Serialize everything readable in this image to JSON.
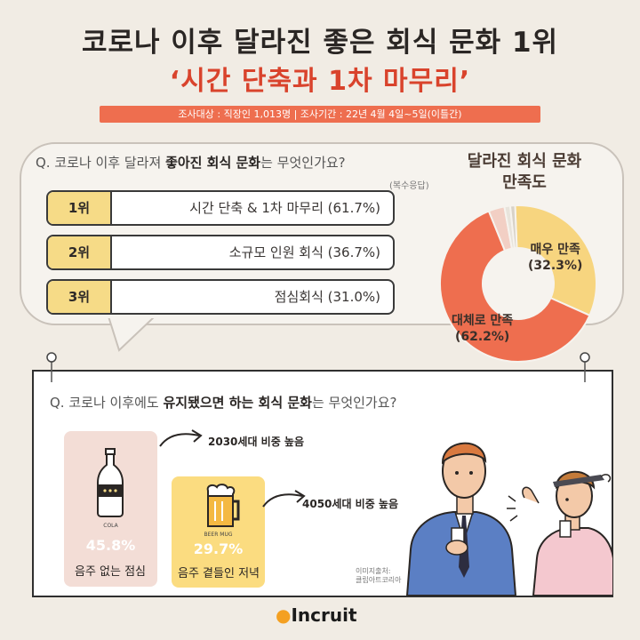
{
  "header": {
    "title": "코로나 이후 달라진 좋은 회식 문화 1위",
    "subtitle": "‘시간 단축과 1차 마무리’",
    "survey_info": "조사대상 : 직장인 1,013명  |  조사기간 : 22년 4월 4일~5일(이틀간)"
  },
  "question1": {
    "prefix": "Q. 코로나 이후 달라져 ",
    "bold": "좋아진 회식 문화",
    "suffix": "는 무엇인가요?",
    "note": "(복수응답)",
    "ranks": [
      {
        "rank": "1위",
        "text": "시간 단축 & 1차 마무리 (61.7%)"
      },
      {
        "rank": "2위",
        "text": "소규모 인원 회식 (36.7%)"
      },
      {
        "rank": "3위",
        "text": "점심회식 (31.0%)"
      }
    ]
  },
  "satisfaction": {
    "title_line1": "달라진 회식 문화",
    "title_line2": "만족도",
    "label_very": "매우 만족",
    "label_very_pct": "(32.3%)",
    "label_mostly": "대체로 만족",
    "label_mostly_pct": "(62.2%)"
  },
  "chart_data": {
    "type": "pie",
    "title": "달라진 회식 문화 만족도",
    "categories": [
      "매우 만족",
      "대체로 만족",
      "",
      "",
      ""
    ],
    "values": [
      32.3,
      62.2,
      3.3,
      1.2,
      1.0
    ],
    "colors": [
      "#f7d57f",
      "#ee6e4f",
      "#f2cfc4",
      "#e8e4dc",
      "#d8d2c8"
    ]
  },
  "question2": {
    "prefix": "Q. 코로나 이후에도 ",
    "bold": "유지됐으면 하는 회식 문화",
    "suffix": "는 무엇인가요?",
    "items": [
      {
        "icon_label": "COLA",
        "pct": "45.8%",
        "caption": "음주 없는 점심",
        "note": "2030세대 비중 높음"
      },
      {
        "icon_label": "BEER MUG",
        "pct": "29.7%",
        "caption": "음주 곁들인 저녁",
        "note": "4050세대 비중 높음"
      }
    ]
  },
  "source": {
    "line1": "이미지출처:",
    "line2": "클립아트코리아"
  },
  "brand": "Incruit",
  "colors": {
    "accent": "#ee6e4f",
    "yellow": "#f6db87",
    "title_red": "#d9432c",
    "background": "#f1ece4"
  }
}
